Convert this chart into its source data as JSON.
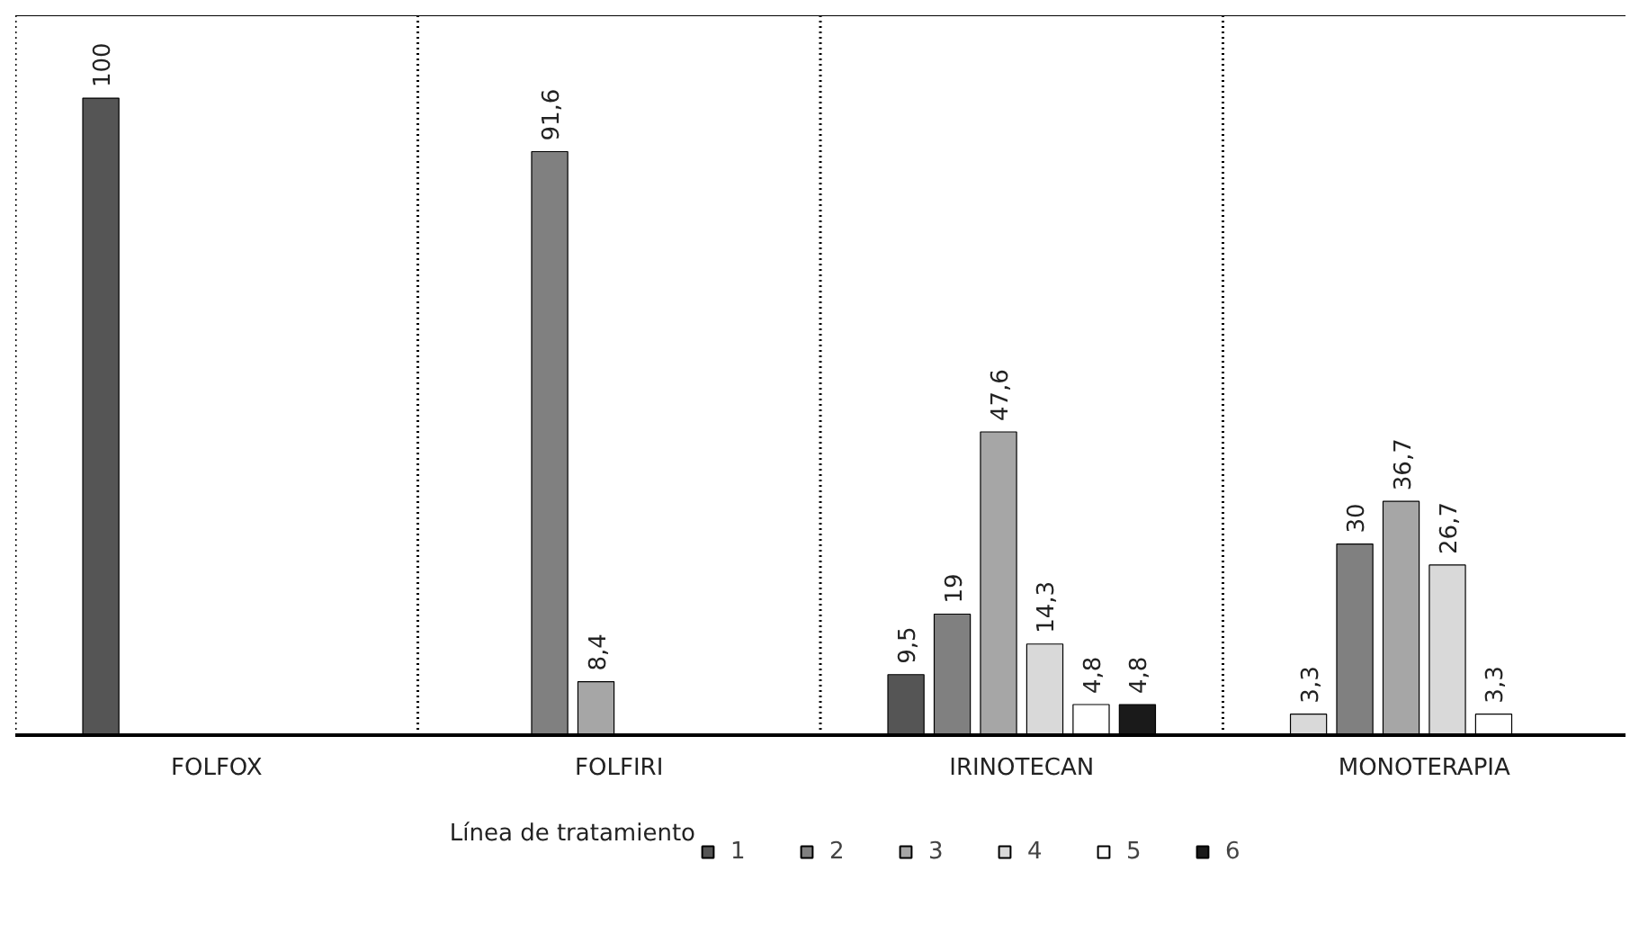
{
  "chart_data": {
    "type": "bar",
    "categories": [
      "FOLFOX",
      "FOLFIRI",
      "IRINOTECAN",
      "MONOTERAPIA"
    ],
    "legend_title": "Línea de tratamiento",
    "legend": "bottom",
    "grid": "x",
    "data_labels": true,
    "series": [
      {
        "name": "1",
        "color": "#555555",
        "colors": [
          "#555555",
          null,
          "#555555",
          "#d9d9d9"
        ],
        "values": [
          100,
          null,
          9.5,
          3.3
        ],
        "value_labels": [
          "100",
          null,
          "9,5",
          "3,3"
        ]
      },
      {
        "name": "2",
        "color": "#808080",
        "values": [
          null,
          91.6,
          19,
          30
        ],
        "value_labels": [
          null,
          "91,6",
          "19",
          "30"
        ]
      },
      {
        "name": "3",
        "color": "#a6a6a6",
        "values": [
          null,
          8.4,
          47.6,
          36.7
        ],
        "value_labels": [
          null,
          "8,4",
          "47,6",
          "36,7"
        ]
      },
      {
        "name": "4",
        "color": "#d9d9d9",
        "values": [
          null,
          null,
          14.3,
          26.7
        ],
        "value_labels": [
          null,
          null,
          "14,3",
          "26,7"
        ]
      },
      {
        "name": "5",
        "color": "#ffffff",
        "values": [
          null,
          null,
          4.8,
          3.3
        ],
        "value_labels": [
          null,
          null,
          "4,8",
          "3,3"
        ]
      },
      {
        "name": "6",
        "color": "#1a1a1a",
        "values": [
          null,
          null,
          4.8,
          null
        ],
        "value_labels": [
          null,
          null,
          "4,8",
          null
        ]
      }
    ]
  }
}
